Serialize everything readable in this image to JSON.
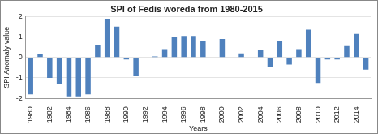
{
  "chart_data": {
    "type": "bar",
    "title": "SPI of Fedis woreda from 1980-2015",
    "x_label": "Years",
    "y_label": "SPI Anomaly value",
    "categories": [
      "1980",
      null,
      "1982",
      null,
      "1984",
      null,
      "1986",
      null,
      "1988",
      null,
      "1990",
      null,
      "1992",
      null,
      "1994",
      null,
      "1996",
      null,
      "1998",
      null,
      "2000",
      null,
      "2002",
      null,
      "2004",
      null,
      "2006",
      null,
      "2008",
      null,
      "2010",
      null,
      "2012",
      null,
      "2014",
      null
    ],
    "values": [
      -1.8,
      0.15,
      -1.0,
      -1.3,
      -1.9,
      -1.9,
      -1.8,
      0.6,
      1.85,
      1.5,
      -0.1,
      -0.9,
      -0.05,
      0.05,
      0.4,
      1.0,
      1.05,
      1.05,
      0.8,
      -0.05,
      0.9,
      0.0,
      0.2,
      -0.05,
      0.35,
      -0.45,
      0.8,
      -0.35,
      0.4,
      1.35,
      -1.25,
      -0.1,
      -0.1,
      0.55,
      1.15,
      -0.6
    ],
    "color": "#4f81bd",
    "ylim": [
      -2,
      2
    ],
    "yticks": [
      -2,
      -1,
      0,
      1,
      2
    ],
    "grid": true
  }
}
